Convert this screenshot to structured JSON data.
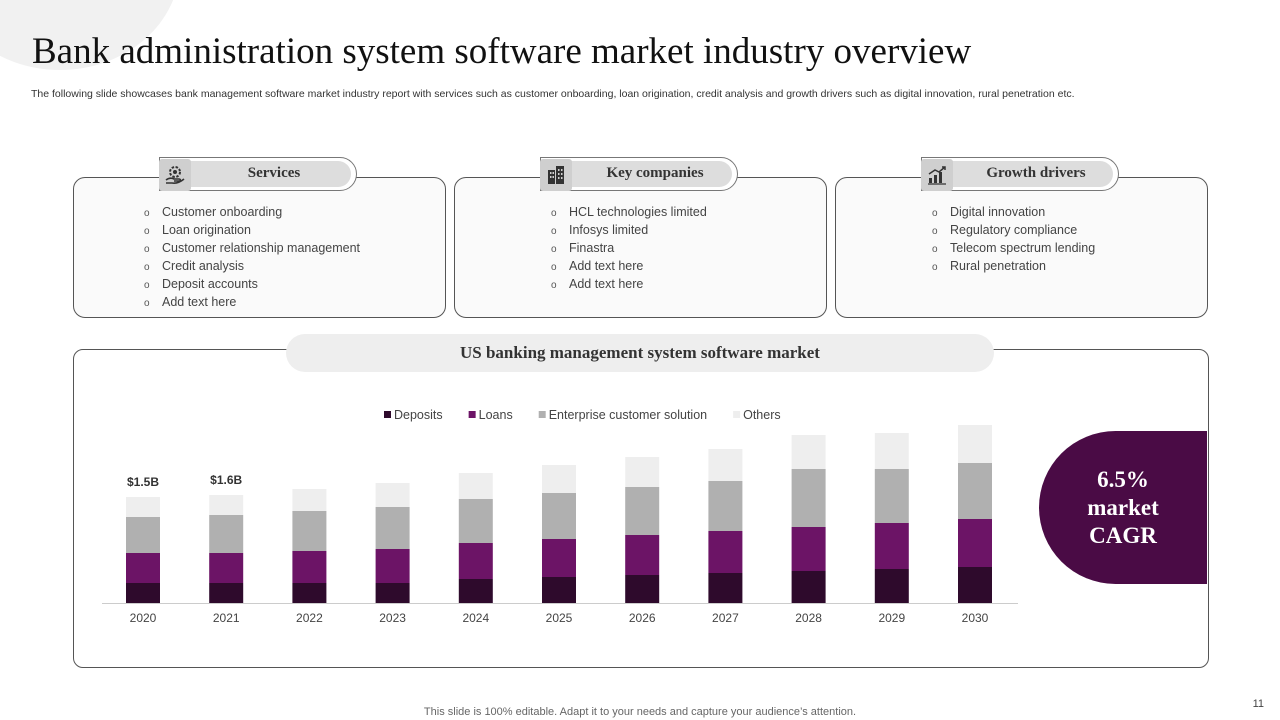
{
  "title": "Bank administration system software market industry overview",
  "subtitle": "The following slide showcases bank management software market industry report with services such as customer onboarding, loan origination, credit analysis and growth drivers such as digital innovation, rural penetration etc.",
  "cards": [
    {
      "label": "Services",
      "icon": "gear-hand-icon",
      "items": [
        "Customer onboarding",
        "Loan origination",
        "Customer relationship management",
        "Credit analysis",
        "Deposit accounts",
        "Add text here"
      ]
    },
    {
      "label": "Key companies",
      "icon": "buildings-icon",
      "items": [
        "HCL technologies limited",
        "Infosys limited",
        "Finastra",
        "Add text here",
        "Add text here"
      ]
    },
    {
      "label": "Growth drivers",
      "icon": "growth-chart-icon",
      "items": [
        "Digital innovation",
        "Regulatory compliance",
        "Telecom spectrum lending",
        "Rural penetration"
      ]
    }
  ],
  "bullet_glyph": "o",
  "chart_title": "US banking management system software market",
  "cagr": {
    "value": "6.5%",
    "line2": "market",
    "line3": "CAGR"
  },
  "chart_data": {
    "type": "bar",
    "stacked": true,
    "title": "US banking management system software market",
    "categories": [
      "2020",
      "2021",
      "2022",
      "2023",
      "2024",
      "2025",
      "2026",
      "2027",
      "2028",
      "2029",
      "2030"
    ],
    "series": [
      {
        "name": "Deposits",
        "color": "#2e0a2c",
        "values": [
          20,
          20,
          20,
          20,
          24,
          26,
          28,
          30,
          32,
          34,
          36
        ]
      },
      {
        "name": "Loans",
        "color": "#6c1466",
        "values": [
          30,
          30,
          32,
          34,
          36,
          38,
          40,
          42,
          44,
          46,
          48
        ]
      },
      {
        "name": "Enterprise customer solution",
        "color": "#b0b0b0",
        "values": [
          36,
          38,
          40,
          42,
          44,
          46,
          48,
          50,
          58,
          54,
          56
        ]
      },
      {
        "name": "Others",
        "color": "#eeeeee",
        "values": [
          20,
          20,
          22,
          24,
          26,
          28,
          30,
          32,
          34,
          36,
          38
        ]
      }
    ],
    "data_labels": [
      {
        "category": "2020",
        "text": "$1.5B"
      },
      {
        "category": "2021",
        "text": "$1.6B"
      }
    ],
    "ylim": [
      0,
      180
    ],
    "legend_position": "top",
    "grid": false,
    "axes": {
      "y_visible": false
    }
  },
  "footer": "This slide is 100% editable. Adapt it to your needs and capture your audience’s attention.",
  "page_number": "11"
}
